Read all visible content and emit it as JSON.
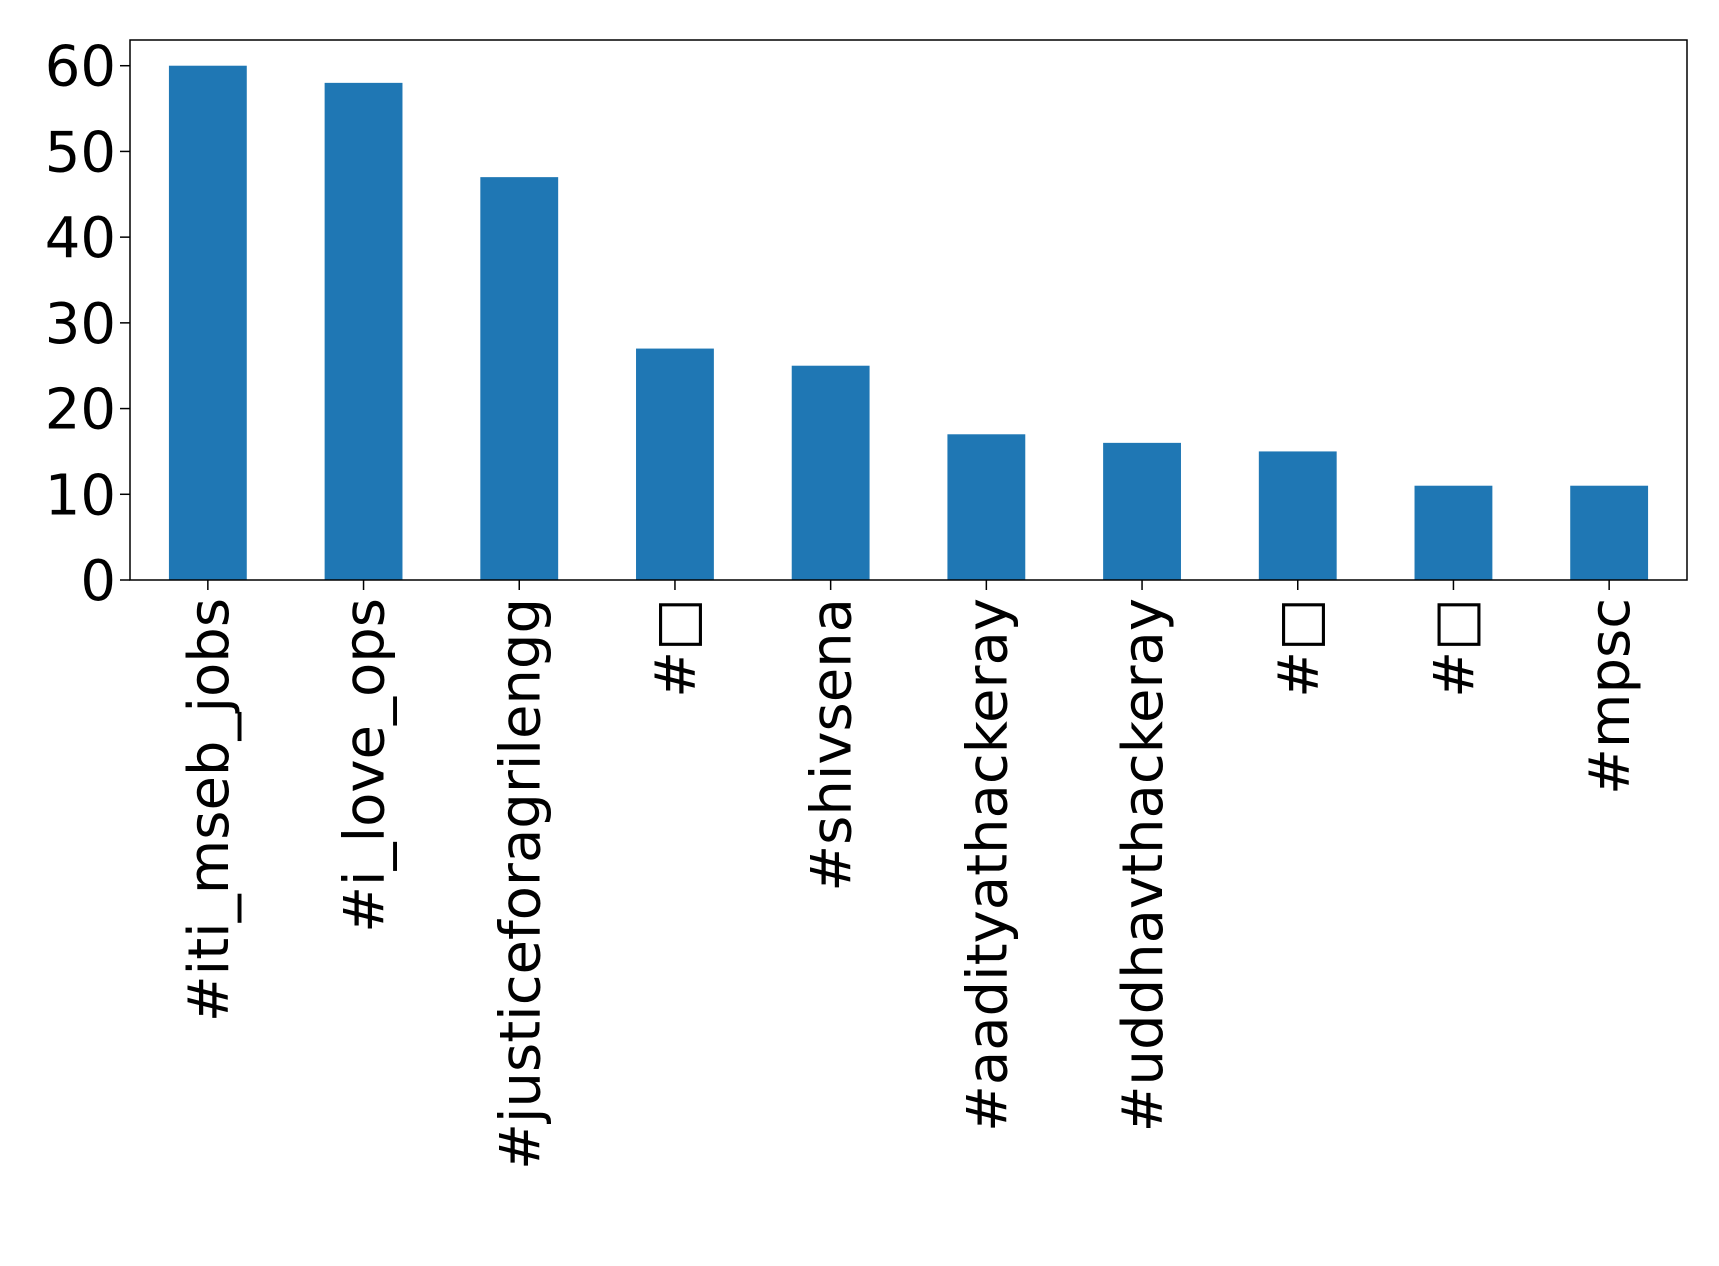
{
  "chart_data": {
    "type": "bar",
    "categories": [
      "#iti_mseb_jobs",
      "#i_love_ops",
      "#justiceforagrilengg",
      "#□",
      "#shivsena",
      "#aadityathackeray",
      "#uddhavthackeray",
      "#□",
      "#□",
      "#mpsc"
    ],
    "values": [
      60,
      58,
      47,
      27,
      25,
      17,
      16,
      15,
      11,
      11
    ],
    "ylim": [
      0,
      63
    ],
    "yticks": [
      0,
      10,
      20,
      30,
      40,
      50,
      60
    ],
    "bar_color": "#1f77b4",
    "grid": false,
    "legend": "none"
  }
}
